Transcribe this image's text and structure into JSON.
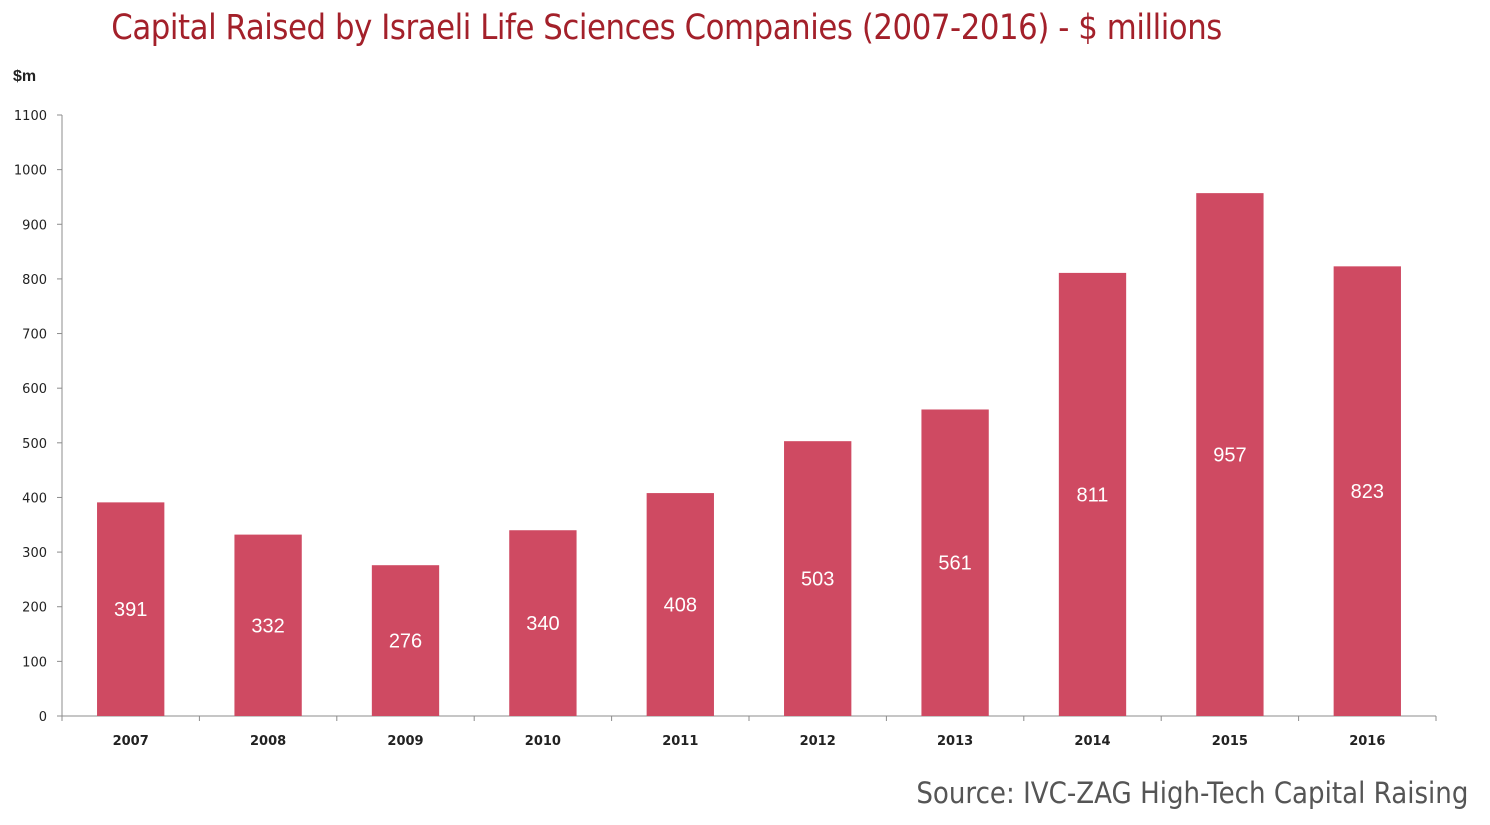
{
  "chart_data": {
    "type": "bar",
    "title": "Capital Raised by Israeli Life Sciences Companies (2007-2016) - $ millions",
    "ylabel": "$m",
    "xlabel": "",
    "categories": [
      "2007",
      "2008",
      "2009",
      "2010",
      "2011",
      "2012",
      "2013",
      "2014",
      "2015",
      "2016"
    ],
    "values": [
      391,
      332,
      276,
      340,
      408,
      503,
      561,
      811,
      957,
      823
    ],
    "ylim": [
      0,
      1100
    ],
    "yticks": [
      0,
      100,
      200,
      300,
      400,
      500,
      600,
      700,
      800,
      900,
      1000,
      1100
    ],
    "grid": false,
    "legend": "none",
    "data_labels": true,
    "bar_color": "#cf4a62",
    "title_color": "#a3202a",
    "source": "Source: IVC-ZAG High-Tech Capital Raising"
  }
}
